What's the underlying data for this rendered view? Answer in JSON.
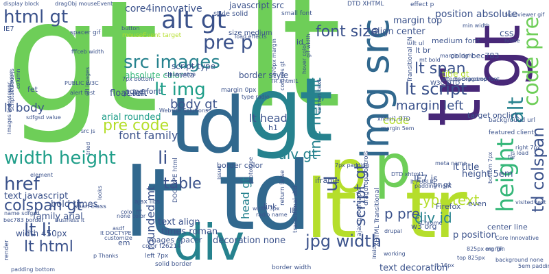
{
  "palette": {
    "dark_purple": "#482878",
    "blue": "#3b528b",
    "steel_blue": "#31688e",
    "teal": "#26828e",
    "sea_green": "#1f9e89",
    "green": "#35b779",
    "light_green": "#6ece58",
    "yellow_green": "#b5de2b",
    "yellow": "#fde725"
  },
  "words": [
    {
      "text": "gt",
      "color": "light_green"
    },
    {
      "text": "lt",
      "color": "light_green"
    },
    {
      "text": "td",
      "color": "steel_blue"
    },
    {
      "text": "gt",
      "color": "teal"
    },
    {
      "text": "lt",
      "color": "steel_blue"
    },
    {
      "text": "td",
      "color": "steel_blue"
    },
    {
      "text": "lt",
      "color": "yellow_green"
    },
    {
      "text": "tr",
      "color": "yellow_green"
    },
    {
      "text": "tr",
      "color": "dark_purple"
    },
    {
      "text": "gt",
      "color": "dark_purple"
    },
    {
      "text": "div",
      "color": "teal"
    },
    {
      "text": "p",
      "color": "yellow_green"
    },
    {
      "text": "p",
      "color": "light_green"
    },
    {
      "text": "img src",
      "color": "steel_blue"
    },
    {
      "text": "alt gt",
      "color": "blue"
    },
    {
      "text": "html gt",
      "color": "blue"
    },
    {
      "text": "width height",
      "color": "sea_green"
    },
    {
      "text": "src images",
      "color": "teal"
    },
    {
      "text": "lt img",
      "color": "sea_green"
    },
    {
      "text": "font size",
      "color": "blue"
    },
    {
      "text": "lt script",
      "color": "blue"
    },
    {
      "text": "jpg width",
      "color": "blue"
    },
    {
      "text": "lt li",
      "color": "blue"
    },
    {
      "text": "lt html",
      "color": "blue"
    },
    {
      "text": "pre p",
      "color": "blue"
    },
    {
      "text": "pre code",
      "color": "yellow_green"
    },
    {
      "text": "table",
      "color": "blue"
    },
    {
      "text": "colspan gt",
      "color": "blue"
    },
    {
      "text": "href",
      "color": "blue"
    },
    {
      "text": "li",
      "color": "blue"
    },
    {
      "text": "height",
      "color": "green"
    },
    {
      "text": "alt",
      "color": "teal"
    },
    {
      "text": "code pre",
      "color": "light_green"
    },
    {
      "text": "td colspan",
      "color": "blue"
    },
    {
      "text": "margin left",
      "color": "blue"
    },
    {
      "text": "lt span",
      "color": "blue"
    },
    {
      "text": "line height",
      "color": "teal"
    },
    {
      "text": "script gt",
      "color": "blue"
    },
    {
      "text": "div gt",
      "color": "teal"
    },
    {
      "text": "div id",
      "color": "teal"
    },
    {
      "text": "type text",
      "color": "yellow_green"
    },
    {
      "text": "p pre",
      "color": "blue"
    },
    {
      "text": "font family",
      "color": "blue"
    },
    {
      "text": "body gt",
      "color": "blue"
    },
    {
      "text": "lt body",
      "color": "blue"
    },
    {
      "text": "core4innovative",
      "color": "blue"
    },
    {
      "text": "lt head",
      "color": "blue"
    },
    {
      "text": "code",
      "color": "yellow_green"
    },
    {
      "text": "ul",
      "color": "blue"
    },
    {
      "text": "position absolute",
      "color": "blue"
    },
    {
      "text": "margin top",
      "color": "blue"
    },
    {
      "text": "align center",
      "color": "blue"
    },
    {
      "text": "css",
      "color": "blue"
    },
    {
      "text": "arial rounded",
      "color": "sea_green"
    },
    {
      "text": "text javascript",
      "color": "blue"
    },
    {
      "text": "family arial",
      "color": "blue"
    },
    {
      "text": "bold times",
      "color": "blue"
    },
    {
      "text": "text align",
      "color": "blue"
    },
    {
      "text": "times roman",
      "color": "blue"
    },
    {
      "text": "decoration none",
      "color": "blue"
    },
    {
      "text": "text decoration",
      "color": "blue"
    },
    {
      "text": "p position",
      "color": "blue"
    },
    {
      "text": "IE7 js",
      "color": "blue"
    },
    {
      "text": "height 5em",
      "color": "blue"
    },
    {
      "text": "head gt",
      "color": "teal"
    },
    {
      "text": "rounded mt",
      "color": "blue"
    },
    {
      "text": "width 450px",
      "color": "blue"
    },
    {
      "text": "lt title",
      "color": "blue"
    },
    {
      "text": "javascript src",
      "color": "blue"
    },
    {
      "text": "float left",
      "color": "blue"
    },
    {
      "text": "script type",
      "color": "blue"
    },
    {
      "text": "absolute color",
      "color": "green"
    },
    {
      "text": "border style",
      "color": "blue"
    },
    {
      "text": "none font",
      "color": "blue"
    },
    {
      "text": "color bec783",
      "color": "blue"
    },
    {
      "text": "medium font",
      "color": "blue"
    },
    {
      "text": "title gt",
      "color": "yellow_green"
    },
    {
      "text": "border color",
      "color": "blue"
    },
    {
      "text": "images spacer",
      "color": "blue"
    },
    {
      "text": "em",
      "color": "blue"
    },
    {
      "text": "link",
      "color": "blue"
    },
    {
      "text": "IE",
      "color": "blue"
    },
    {
      "text": "iframe",
      "color": "blue"
    },
    {
      "text": "lt br",
      "color": "blue"
    },
    {
      "text": "lt meta",
      "color": "blue"
    },
    {
      "text": "target onclick",
      "color": "blue"
    },
    {
      "text": "featured client",
      "color": "blue"
    },
    {
      "text": "background url",
      "color": "blue"
    },
    {
      "text": "br gt",
      "color": "blue"
    },
    {
      "text": "even",
      "color": "blue"
    },
    {
      "text": "Firefox",
      "color": "blue"
    },
    {
      "text": "center line",
      "color": "blue"
    },
    {
      "text": "fet",
      "color": "blue"
    },
    {
      "text": "IE7",
      "color": "blue"
    },
    {
      "text": "id",
      "color": "blue"
    },
    {
      "text": "h1",
      "color": "blue"
    },
    {
      "text": "w3 org",
      "color": "blue"
    },
    {
      "text": "style solid",
      "color": "blue"
    },
    {
      "text": "size medium",
      "color": "blue"
    },
    {
      "text": "small font",
      "color": "blue"
    },
    {
      "text": "spacer gif",
      "color": "blue"
    },
    {
      "text": "effect p",
      "color": "blue"
    },
    {
      "text": "DTD XHTML",
      "color": "blue"
    },
    {
      "text": "lt ul",
      "color": "blue"
    },
    {
      "text": "margin 0px",
      "color": "blue"
    },
    {
      "text": "display block",
      "color": "blue"
    },
    {
      "text": "dragObj mouseEvent",
      "color": "blue"
    },
    {
      "text": "mouseEvent target",
      "color": "blue"
    },
    {
      "text": "PUBLIC W3C",
      "color": "blue"
    },
    {
      "text": "alert test",
      "color": "blue"
    },
    {
      "text": "fffceb width",
      "color": "blue"
    },
    {
      "text": "W3C DTD",
      "color": "blue"
    },
    {
      "text": "Transitional EN",
      "color": "blue"
    },
    {
      "text": "XHTML Transitional",
      "color": "blue"
    },
    {
      "text": "ajax googleapis",
      "color": "blue"
    },
    {
      "text": "dragdrop controls",
      "color": "blue"
    },
    {
      "text": "transitional dtd",
      "color": "blue"
    },
    {
      "text": "DOCTYPE html",
      "color": "blue"
    },
    {
      "text": "ajax libs",
      "color": "blue"
    },
    {
      "text": "lt DOCTYPE",
      "color": "blue"
    },
    {
      "text": "span class",
      "color": "blue"
    },
    {
      "text": "color f26214",
      "color": "blue"
    },
    {
      "text": "left 7px",
      "color": "blue"
    },
    {
      "text": "solid border",
      "color": "blue"
    },
    {
      "text": "border width",
      "color": "blue"
    },
    {
      "text": "render",
      "color": "blue"
    },
    {
      "text": "padding bottom",
      "color": "blue"
    },
    {
      "text": "Business lt",
      "color": "blue"
    },
    {
      "text": "name sdfgsd",
      "color": "blue"
    },
    {
      "text": "bec783 border",
      "color": "blue"
    },
    {
      "text": "width 3px",
      "color": "blue"
    },
    {
      "text": "radio name",
      "color": "blue"
    },
    {
      "text": "lt 16px",
      "color": "blue"
    },
    {
      "text": "working",
      "color": "blue"
    },
    {
      "text": "drupal",
      "color": "blue"
    },
    {
      "text": "Chrome",
      "color": "blue"
    },
    {
      "text": "top 825px",
      "color": "blue"
    },
    {
      "text": "inside",
      "color": "blue"
    },
    {
      "text": "org TR",
      "color": "blue"
    },
    {
      "text": "825px margin",
      "color": "blue"
    },
    {
      "text": "visited text",
      "color": "blue"
    },
    {
      "text": "5em padding",
      "color": "blue"
    },
    {
      "text": "js load",
      "color": "blue"
    },
    {
      "text": "padding right",
      "color": "blue"
    },
    {
      "text": "DTD xhtml1",
      "color": "blue"
    },
    {
      "text": "lt PUBLIC",
      "color": "blue"
    },
    {
      "text": "xhtml1 DTD",
      "color": "blue"
    },
    {
      "text": "margin 5em",
      "color": "blue"
    },
    {
      "text": "meta name",
      "color": "blue"
    },
    {
      "text": "far",
      "color": "blue"
    },
    {
      "text": "7px padding",
      "color": "blue"
    },
    {
      "text": "return false",
      "color": "blue"
    },
    {
      "text": "issue",
      "color": "blue"
    },
    {
      "text": "prototype",
      "color": "blue"
    },
    {
      "text": "TR xhtml1",
      "color": "blue"
    },
    {
      "text": "load effects",
      "color": "blue"
    },
    {
      "text": "type radio",
      "color": "blue"
    },
    {
      "text": "270px margin",
      "color": "blue"
    },
    {
      "text": "Website Solutions",
      "color": "blue"
    },
    {
      "text": "problem",
      "color": "blue"
    },
    {
      "text": "7px bottom",
      "color": "blue"
    },
    {
      "text": "class name",
      "color": "blue"
    },
    {
      "text": "controls gt",
      "color": "blue"
    },
    {
      "text": "roman text",
      "color": "blue"
    },
    {
      "text": "mt bold",
      "color": "blue"
    },
    {
      "text": "effects dragdrop",
      "color": "blue"
    },
    {
      "text": "hover color",
      "color": "blue"
    },
    {
      "text": "gif width",
      "color": "blue"
    },
    {
      "text": "element",
      "color": "blue"
    },
    {
      "text": "sdfgsd value",
      "color": "blue"
    },
    {
      "text": "src js",
      "color": "blue"
    },
    {
      "text": "url images",
      "color": "blue"
    },
    {
      "text": "browser",
      "color": "blue"
    },
    {
      "text": "column",
      "color": "blue"
    },
    {
      "text": "scriptaculous js",
      "color": "blue"
    },
    {
      "text": "images todoviewer",
      "color": "blue"
    },
    {
      "text": "tried",
      "color": "blue"
    },
    {
      "text": "looks",
      "color": "blue"
    },
    {
      "text": "color fff",
      "color": "blue"
    },
    {
      "text": "none color",
      "color": "blue"
    },
    {
      "text": "asdf",
      "color": "blue"
    },
    {
      "text": "customize",
      "color": "blue"
    },
    {
      "text": "p Thanks",
      "color": "blue"
    },
    {
      "text": "Core Innovative",
      "color": "blue"
    },
    {
      "text": "background none",
      "color": "blue"
    },
    {
      "text": "bottom 7px",
      "color": "blue"
    },
    {
      "text": "right 7px",
      "color": "blue"
    },
    {
      "text": "todoviewer gif",
      "color": "blue"
    },
    {
      "text": "min width",
      "color": "blue"
    },
    {
      "text": "home",
      "color": "blue"
    },
    {
      "text": "margin right",
      "color": "blue"
    },
    {
      "text": "background font",
      "color": "blue"
    },
    {
      "text": "button",
      "color": "blue"
    },
    {
      "text": "input type",
      "color": "blue"
    },
    {
      "text": "size small",
      "color": "blue"
    }
  ]
}
